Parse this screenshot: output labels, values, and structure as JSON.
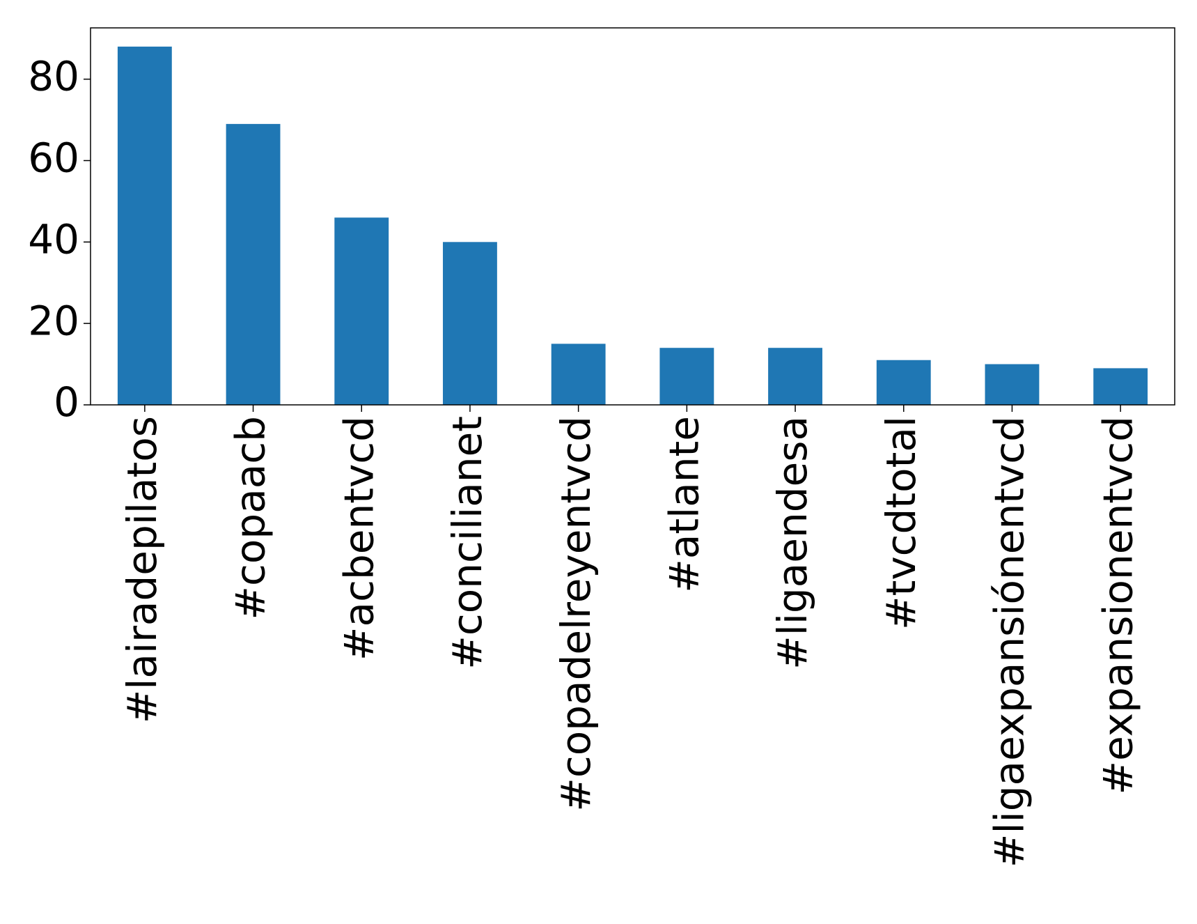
{
  "chart_data": {
    "type": "bar",
    "categories": [
      "#lairadepilatos",
      "#copaacb",
      "#acbentvcd",
      "#concilianet",
      "#copadelreyentvcd",
      "#atlante",
      "#ligaendesa",
      "#tvcdtotal",
      "#ligaexpansiónentvcd",
      "#expansionentvcd"
    ],
    "values": [
      88,
      69,
      46,
      40,
      15,
      14,
      14,
      11,
      10,
      9
    ],
    "color": "#1f77b4",
    "ylim": [
      0,
      92.6
    ],
    "yticks": [
      0,
      20,
      40,
      60,
      80
    ],
    "grid": false
  }
}
